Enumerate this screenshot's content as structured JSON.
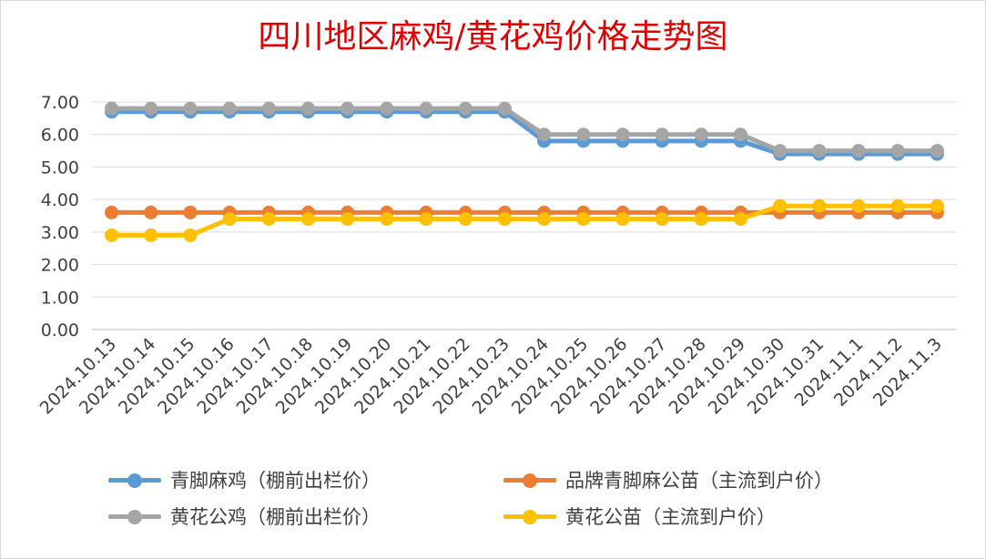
{
  "chart_data": {
    "type": "line",
    "title": "四川地区麻鸡/黄花鸡价格走势图",
    "xlabel": "",
    "ylabel": "",
    "ylim": [
      0,
      7
    ],
    "yticks": [
      "0.00",
      "1.00",
      "2.00",
      "3.00",
      "4.00",
      "5.00",
      "6.00",
      "7.00"
    ],
    "grid": true,
    "legend_position": "bottom",
    "categories": [
      "2024.10.13",
      "2024.10.14",
      "2024.10.15",
      "2024.10.16",
      "2024.10.17",
      "2024.10.18",
      "2024.10.19",
      "2024.10.20",
      "2024.10.21",
      "2024.10.22",
      "2024.10.23",
      "2024.10.24",
      "2024.10.25",
      "2024.10.26",
      "2024.10.27",
      "2024.10.28",
      "2024.10.29",
      "2024.10.30",
      "2024.10.31",
      "2024.11.1",
      "2024.11.2",
      "2024.11.3"
    ],
    "series": [
      {
        "name": "青脚麻鸡（棚前出栏价）",
        "color": "#5b9bd5",
        "values": [
          6.7,
          6.7,
          6.7,
          6.7,
          6.7,
          6.7,
          6.7,
          6.7,
          6.7,
          6.7,
          6.7,
          5.8,
          5.8,
          5.8,
          5.8,
          5.8,
          5.8,
          5.4,
          5.4,
          5.4,
          5.4,
          5.4
        ]
      },
      {
        "name": "品牌青脚麻公苗（主流到户价）",
        "color": "#ed7d31",
        "values": [
          3.6,
          3.6,
          3.6,
          3.6,
          3.6,
          3.6,
          3.6,
          3.6,
          3.6,
          3.6,
          3.6,
          3.6,
          3.6,
          3.6,
          3.6,
          3.6,
          3.6,
          3.6,
          3.6,
          3.6,
          3.6,
          3.6
        ]
      },
      {
        "name": "黄花公鸡（棚前出栏价）",
        "color": "#a5a5a5",
        "values": [
          6.8,
          6.8,
          6.8,
          6.8,
          6.8,
          6.8,
          6.8,
          6.8,
          6.8,
          6.8,
          6.8,
          6.0,
          6.0,
          6.0,
          6.0,
          6.0,
          6.0,
          5.5,
          5.5,
          5.5,
          5.5,
          5.5
        ]
      },
      {
        "name": "黄花公苗（主流到户价）",
        "color": "#ffc000",
        "values": [
          2.9,
          2.9,
          2.9,
          3.4,
          3.4,
          3.4,
          3.4,
          3.4,
          3.4,
          3.4,
          3.4,
          3.4,
          3.4,
          3.4,
          3.4,
          3.4,
          3.4,
          3.8,
          3.8,
          3.8,
          3.8,
          3.8
        ]
      }
    ]
  }
}
